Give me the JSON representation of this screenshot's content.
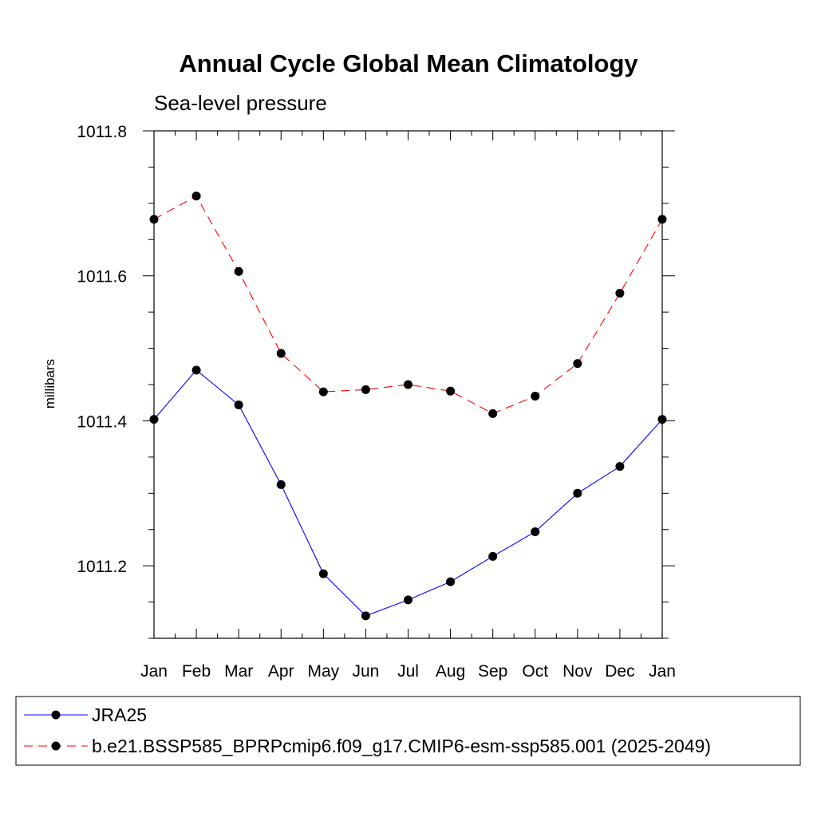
{
  "chart_data": {
    "type": "line",
    "title": "Annual Cycle Global Mean Climatology",
    "subtitle": "Sea-level pressure",
    "ylabel": "millibars",
    "xlabel": "",
    "ylim": [
      1011.1,
      1011.8
    ],
    "yticks": [
      1011.2,
      1011.4,
      1011.6,
      1011.8
    ],
    "ytick_labels": [
      "1011.2",
      "1011.4",
      "1011.6",
      "1011.8"
    ],
    "categories": [
      "Jan",
      "Feb",
      "Mar",
      "Apr",
      "May",
      "Jun",
      "Jul",
      "Aug",
      "Sep",
      "Oct",
      "Nov",
      "Dec",
      "Jan"
    ],
    "series": [
      {
        "name": "JRA25",
        "color": "#0000ff",
        "dash": "solid",
        "values": [
          1011.402,
          1011.47,
          1011.422,
          1011.312,
          1011.189,
          1011.131,
          1011.153,
          1011.178,
          1011.213,
          1011.247,
          1011.3,
          1011.337,
          1011.402
        ]
      },
      {
        "name": "b.e21.BSSP585_BPRPcmip6.f09_g17.CMIP6-esm-ssp585.001 (2025-2049)",
        "color": "#ff0000",
        "dash": "dashed",
        "values": [
          1011.678,
          1011.71,
          1011.606,
          1011.493,
          1011.44,
          1011.443,
          1011.45,
          1011.441,
          1011.41,
          1011.434,
          1011.479,
          1011.576,
          1011.678
        ]
      }
    ],
    "legend": "bottom",
    "grid": false
  }
}
